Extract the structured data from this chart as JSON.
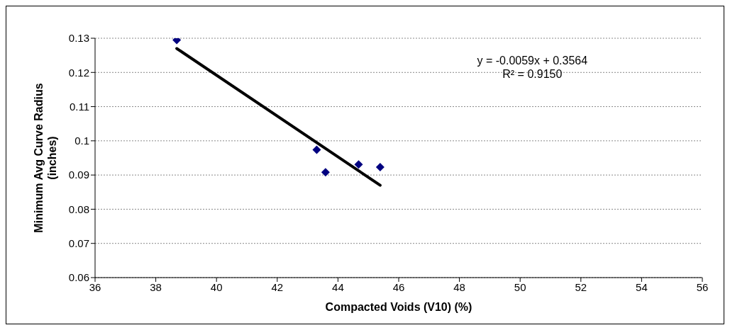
{
  "chart_data": {
    "type": "scatter",
    "xlabel": "Compacted Voids (V10) (%)",
    "ylabel": "Minimum Avg Curve Radius (inches)",
    "series": [
      {
        "color": "#000080",
        "marker": "diamond",
        "x": [
          38.69,
          43.3,
          43.59,
          44.68,
          45.39
        ],
        "values": [
          0.1295,
          0.0974,
          0.0908,
          0.0931,
          0.0923
        ]
      },
      {
        "type": "line",
        "color": "#000000",
        "marker": "none",
        "line_style": "solid",
        "x": [
          38.69,
          45.39
        ],
        "values": [
          0.127,
          0.087
        ]
      }
    ],
    "annotations": [
      "y = -0.0059x + 0.3564",
      "R² = 0.9150"
    ],
    "xlim": [
      36,
      56
    ],
    "xticks": [
      36,
      38,
      40,
      42,
      44,
      46,
      48,
      50,
      52,
      54,
      56
    ],
    "ylim": [
      0.06,
      0.13
    ],
    "yticks": [
      0.06,
      0.07,
      0.08,
      0.09,
      0.1,
      0.11,
      0.12,
      0.13
    ],
    "grid": "y"
  }
}
